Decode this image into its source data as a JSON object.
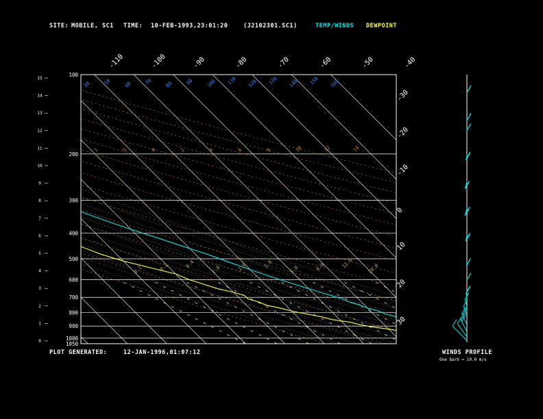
{
  "header": {
    "site_label": "SITE:",
    "site_value": "MOBILE, SC1",
    "time_label": "TIME:",
    "time_value": "10-FEB-1993,23:01:20",
    "file_name": "(J2102301.SC1)",
    "temp_winds_label": "TEMP/WINDS",
    "dewpoint_label": "DEWPOINT"
  },
  "footer": {
    "plot_generated_label": "PLOT GENERATED:",
    "plot_generated_value": "12-JAN-1996,01:07:12"
  },
  "winds_panel": {
    "title": "WINDS PROFILE",
    "note": "One barb = 10.0 m/s"
  },
  "colors": {
    "background": "#000000",
    "temp_winds": "#00e5e5",
    "dewpoint": "#ffff33",
    "isobars_isotherms": "#ffffff",
    "dry_adiabats": "#d28c32",
    "moist_adiabats": "#d2d2d2",
    "mixing_ratio": "#c8aa5a",
    "left_scale": "#3c8cff"
  },
  "chart_data": {
    "type": "line",
    "diagram": "skew-T log-P",
    "title": "",
    "pressure_axis_hpa": [
      100,
      200,
      300,
      400,
      500,
      600,
      700,
      800,
      900,
      1000,
      1050
    ],
    "height_axis_km": [
      15,
      14,
      13,
      12,
      11,
      10,
      9,
      8,
      7,
      6,
      5,
      4,
      3,
      2,
      1,
      0
    ],
    "top_temperature_labels_c": [
      -110,
      -100,
      -90,
      -80,
      -70,
      -60,
      -50,
      -40
    ],
    "right_temperature_labels_c": [
      -30,
      -20,
      -10,
      0,
      10,
      20,
      30
    ],
    "dry_adiabat_labels": [
      "1",
      "5",
      "0",
      "2",
      "4",
      "6",
      "8",
      "10",
      "12",
      "14"
    ],
    "mixing_ratio_labels": [
      "0.1",
      "0.2",
      "0.4",
      "1.0",
      "2.0",
      "3.0",
      "5.0",
      "8.0",
      "12.0",
      "20.0"
    ],
    "theta_labels": [
      "30",
      "50",
      "60",
      "70",
      "80",
      "90",
      "100",
      "110",
      "120",
      "130",
      "140",
      "150",
      "160"
    ],
    "series": [
      {
        "name": "TEMP/WINDS",
        "pressure_hpa": [
          1040,
          1020,
          1010,
          1000,
          990,
          975,
          960,
          945,
          930,
          910,
          890,
          870,
          850,
          830,
          810,
          790,
          770,
          750,
          730,
          710,
          690,
          670,
          650,
          620,
          600,
          570,
          540,
          510,
          480,
          450,
          420,
          400,
          380,
          360,
          340,
          320,
          300,
          280,
          260,
          240,
          220,
          200,
          185,
          170,
          160,
          150,
          140,
          130,
          120,
          110,
          100
        ],
        "temp_c": [
          13,
          15,
          14,
          16,
          15,
          16,
          14,
          13,
          12,
          10,
          9,
          7,
          6,
          5,
          3,
          2,
          0,
          -1,
          -3,
          -4,
          -6,
          -8,
          -10,
          -13,
          -15,
          -18,
          -21,
          -24,
          -27,
          -31,
          -35,
          -38,
          -41,
          -44,
          -47,
          -50,
          -53,
          -55,
          -56,
          -56,
          -57,
          -58,
          -58,
          -59,
          -61,
          -63,
          -65,
          -68,
          -70,
          -70,
          -70
        ]
      },
      {
        "name": "DEWPOINT",
        "pressure_hpa": [
          1040,
          1020,
          1010,
          1000,
          990,
          975,
          960,
          945,
          930,
          910,
          890,
          870,
          850,
          830,
          810,
          790,
          770,
          750,
          730,
          710,
          690,
          670,
          650,
          620,
          600,
          570,
          540,
          510,
          480,
          450,
          420,
          400,
          380,
          360,
          340,
          320,
          300,
          280,
          260,
          240,
          220,
          200,
          185,
          170,
          160,
          150,
          140,
          130,
          120,
          110,
          100
        ],
        "temp_c": [
          12,
          11,
          11,
          9,
          7,
          7,
          5,
          3,
          1,
          -3,
          -6,
          -8,
          -12,
          -14,
          -17,
          -20,
          -22,
          -25,
          -26,
          -28,
          -28,
          -30,
          -33,
          -36,
          -38,
          -40,
          -45,
          -50,
          -54,
          -57,
          -60,
          -60,
          -63,
          -65,
          -66,
          -68,
          -70,
          -72,
          -74,
          -75,
          -76,
          -79,
          -80,
          -81,
          -84,
          -86,
          -88,
          -90,
          -92,
          -94,
          -94
        ]
      }
    ],
    "winds_profile": {
      "unit": "m/s",
      "barbs": [
        {
          "height_km": 14.0,
          "direction_deg": 270,
          "speed_ms": 40
        },
        {
          "height_km": 12.5,
          "direction_deg": 275,
          "speed_ms": 30
        },
        {
          "height_km": 12.0,
          "direction_deg": 280,
          "speed_ms": 20
        },
        {
          "height_km": 10.5,
          "direction_deg": 290,
          "speed_ms": 30
        },
        {
          "height_km": 9.0,
          "direction_deg": 300,
          "speed_ms": 20
        },
        {
          "height_km": 7.5,
          "direction_deg": 300,
          "speed_ms": 30
        },
        {
          "height_km": 6.0,
          "direction_deg": 295,
          "speed_ms": 30
        },
        {
          "height_km": 4.5,
          "direction_deg": 285,
          "speed_ms": 20
        },
        {
          "height_km": 3.5,
          "direction_deg": 270,
          "speed_ms": 20
        },
        {
          "height_km": 2.5,
          "direction_deg": 250,
          "speed_ms": 20
        },
        {
          "height_km": 2.0,
          "direction_deg": 240,
          "speed_ms": 10
        },
        {
          "height_km": 1.5,
          "direction_deg": 230,
          "speed_ms": 10
        },
        {
          "height_km": 1.0,
          "direction_deg": 220,
          "speed_ms": 20
        },
        {
          "height_km": 0.6,
          "direction_deg": 215,
          "speed_ms": 20
        },
        {
          "height_km": 0.3,
          "direction_deg": 200,
          "speed_ms": 10
        },
        {
          "height_km": 0.1,
          "direction_deg": 180,
          "speed_ms": 10
        }
      ]
    }
  }
}
